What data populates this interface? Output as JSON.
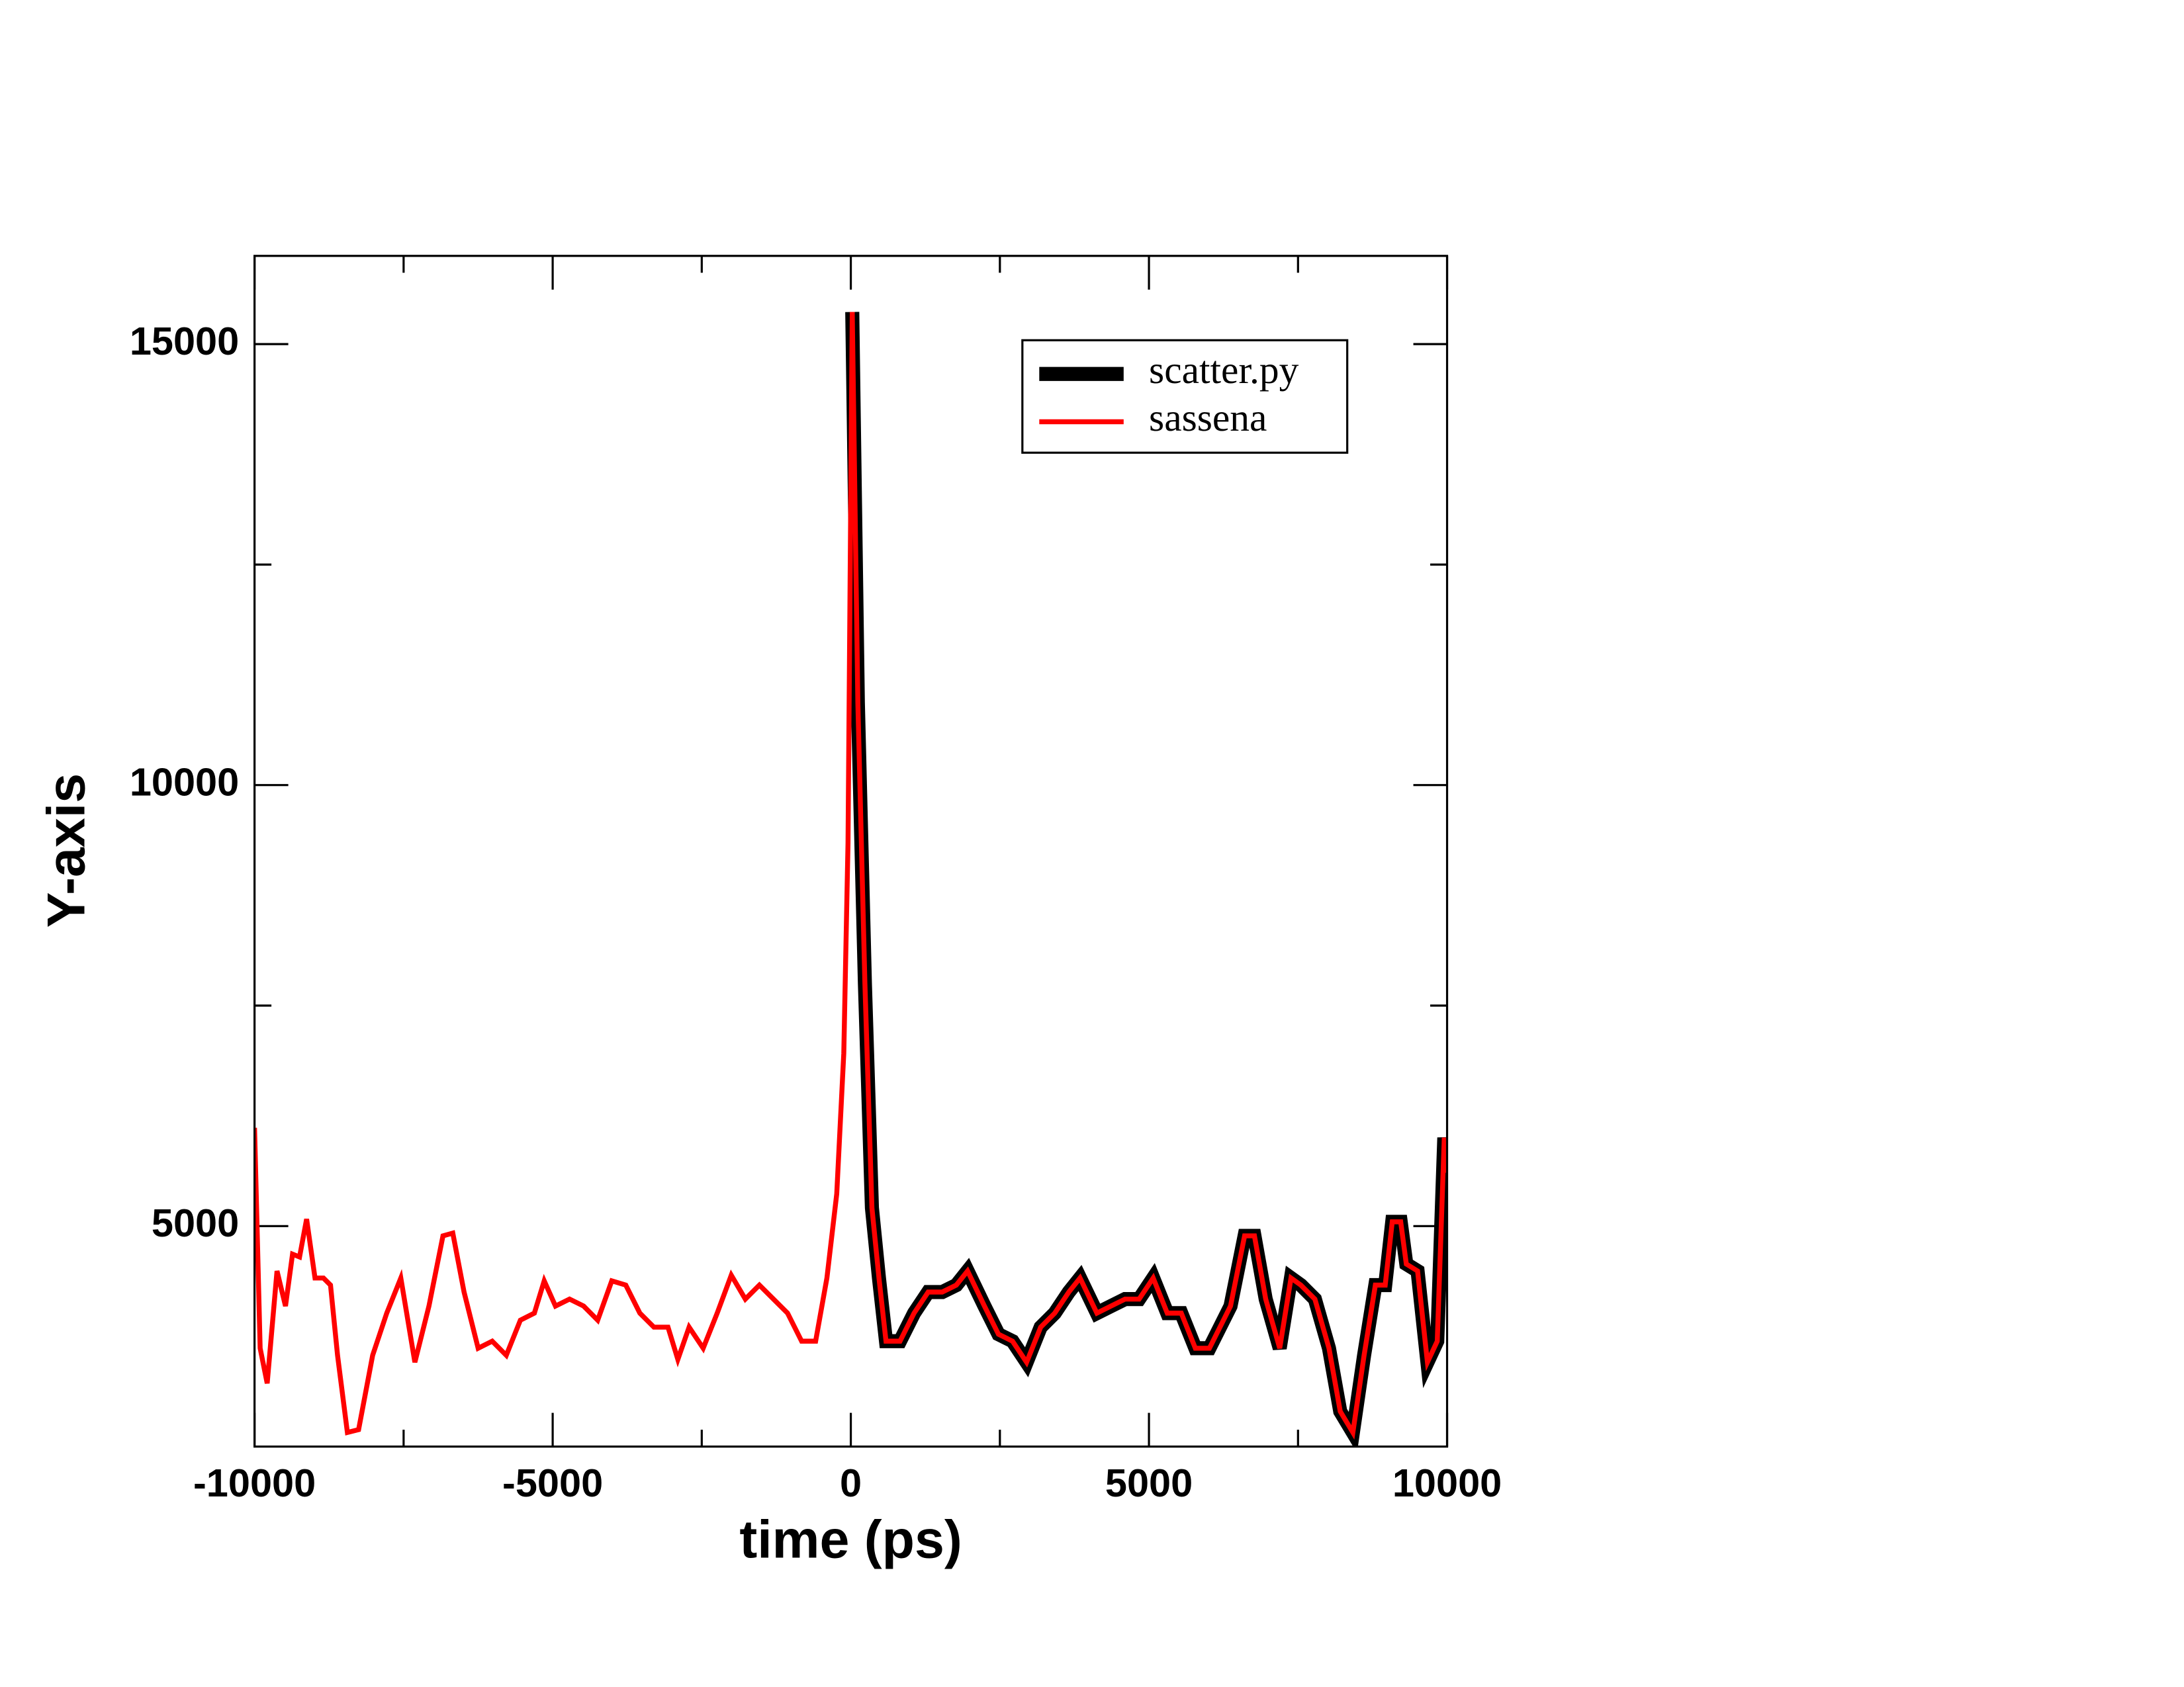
{
  "chart_data": {
    "type": "line",
    "xlabel": "time (ps)",
    "ylabel": "Y-axis",
    "xlim": [
      -10000,
      10000
    ],
    "xticks": [
      -10000,
      -5000,
      0,
      5000,
      10000
    ],
    "xminorticks": [
      -7500,
      -2500,
      2500,
      7500
    ],
    "ylim": [
      2500,
      16000
    ],
    "yticks": [
      5000,
      10000,
      15000
    ],
    "yminorticks": [
      7500,
      12500
    ],
    "legend": "upper right",
    "series": [
      {
        "name": "scatter.py",
        "color": "#000000",
        "line_width": 10,
        "x": [
          24,
          118,
          236,
          354,
          472,
          590,
          825,
          1061,
          1297,
          1533,
          1769,
          1958,
          2241,
          2476,
          2712,
          2948,
          3184,
          3420,
          3656,
          3844,
          4127,
          4363,
          4599,
          4835,
          5071,
          5307,
          5542,
          5778,
          6014,
          6368,
          6604,
          6769,
          6958,
          7193,
          7382,
          7547,
          7783,
          8019,
          8208,
          8420,
          8608,
          8797,
          8962,
          9080,
          9222,
          9316,
          9505,
          9670,
          9835,
          9953,
          10000
        ],
        "values": [
          15364,
          10938,
          7754,
          5207,
          4411,
          3695,
          3695,
          4013,
          4252,
          4252,
          4331,
          4491,
          4093,
          3774,
          3695,
          3456,
          3854,
          4013,
          4252,
          4411,
          4013,
          4093,
          4172,
          4172,
          4411,
          4013,
          4013,
          3615,
          3615,
          4093,
          4889,
          4889,
          4172,
          3615,
          4411,
          4331,
          4172,
          3615,
          2899,
          2660,
          3535,
          4331,
          4331,
          5048,
          5048,
          4570,
          4491,
          3456,
          3695,
          6003,
          5605
        ]
      },
      {
        "name": "sassena",
        "color": "#ff0000",
        "line_width": 3.5,
        "x": [
          -10000,
          -9906,
          -9788,
          -9623,
          -9481,
          -9363,
          -9245,
          -9127,
          -8986,
          -8844,
          -8726,
          -8608,
          -8443,
          -8255,
          -8019,
          -7783,
          -7547,
          -7311,
          -7075,
          -6840,
          -6675,
          -6486,
          -6250,
          -6014,
          -5778,
          -5542,
          -5307,
          -5142,
          -4953,
          -4717,
          -4481,
          -4245,
          -4009,
          -3774,
          -3538,
          -3302,
          -3066,
          -2901,
          -2712,
          -2476,
          -2241,
          -2005,
          -1769,
          -1533,
          -1297,
          -1061,
          -825,
          -590,
          -401,
          -236,
          -118,
          -47,
          24,
          118,
          236,
          354,
          472,
          590,
          825,
          1061,
          1297,
          1533,
          1769,
          1958,
          2241,
          2476,
          2712,
          2948,
          3184,
          3420,
          3656,
          3844,
          4127,
          4363,
          4599,
          4835,
          5071,
          5307,
          5542,
          5778,
          6014,
          6368,
          6604,
          6769,
          6958,
          7193,
          7382,
          7547,
          7783,
          8019,
          8208,
          8420,
          8608,
          8797,
          8962,
          9080,
          9222,
          9316,
          9505,
          9670,
          9835,
          9953,
          10000
        ],
        "values": [
          6114,
          3615,
          3217,
          4491,
          4093,
          4682,
          4650,
          5080,
          4411,
          4411,
          4331,
          3535,
          2660,
          2692,
          3535,
          4013,
          4411,
          3456,
          4093,
          4889,
          4920,
          4252,
          3615,
          3695,
          3535,
          3933,
          4013,
          4379,
          4093,
          4172,
          4093,
          3933,
          4379,
          4331,
          4013,
          3854,
          3854,
          3488,
          3854,
          3615,
          4013,
          4443,
          4172,
          4331,
          4172,
          4013,
          3695,
          3695,
          4411,
          5366,
          6958,
          9346,
          15364,
          10938,
          7754,
          5207,
          4411,
          3695,
          3695,
          4013,
          4252,
          4252,
          4331,
          4491,
          4093,
          3774,
          3695,
          3456,
          3854,
          4013,
          4252,
          4411,
          4013,
          4093,
          4172,
          4172,
          4411,
          4013,
          4013,
          3615,
          3615,
          4093,
          4889,
          4889,
          4172,
          3615,
          4411,
          4331,
          4172,
          3615,
          2899,
          2660,
          3535,
          4331,
          4331,
          5048,
          5048,
          4570,
          4491,
          3456,
          3695,
          6003,
          5605
        ]
      }
    ]
  }
}
